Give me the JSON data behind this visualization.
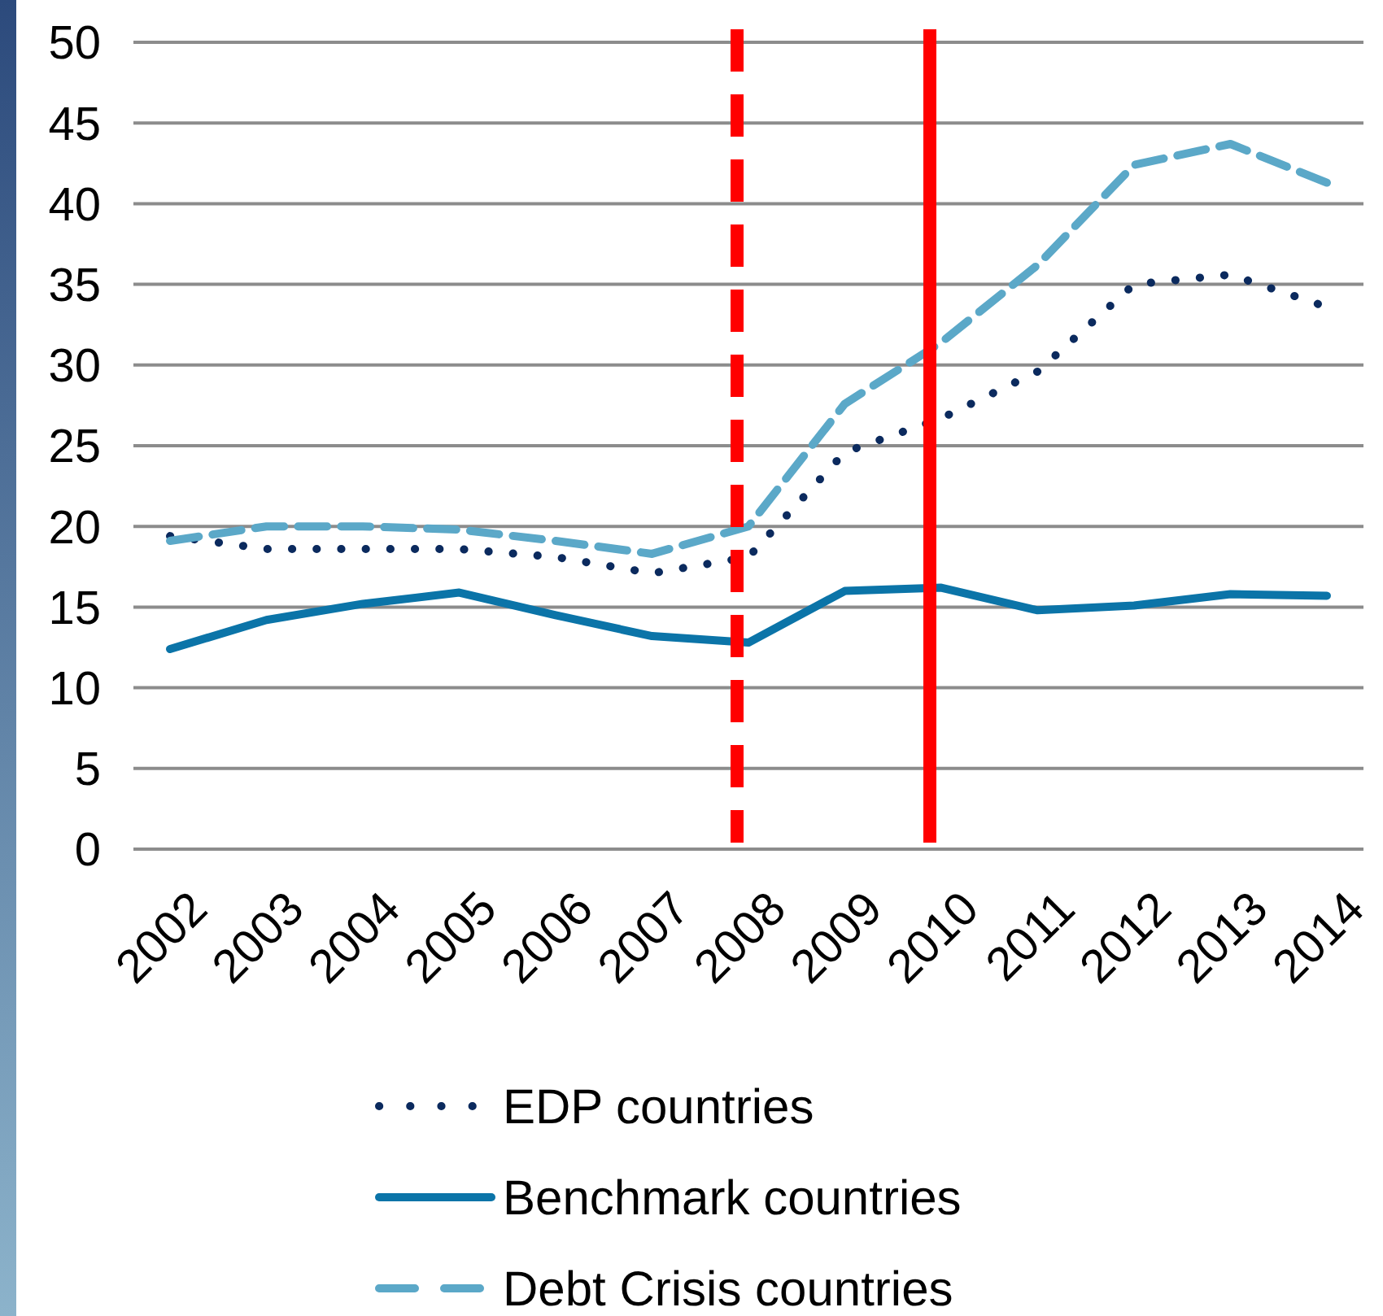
{
  "chart_data": {
    "type": "line",
    "categories": [
      "2002",
      "2003",
      "2004",
      "2005",
      "2006",
      "2007",
      "2008",
      "2009",
      "2010",
      "2011",
      "2012",
      "2013",
      "2014"
    ],
    "series": [
      {
        "name": "EDP countries",
        "color": "#0b2a5e",
        "line_style": "dotted",
        "values": [
          19.4,
          18.6,
          18.6,
          18.6,
          18.1,
          17.1,
          18.1,
          24.6,
          26.7,
          29.6,
          35.0,
          35.6,
          33.6
        ]
      },
      {
        "name": "Benchmark countries",
        "color": "#0b74a8",
        "line_style": "solid",
        "values": [
          12.4,
          14.2,
          15.2,
          15.9,
          14.5,
          13.2,
          12.8,
          16.0,
          16.2,
          14.8,
          15.1,
          15.8,
          15.7
        ]
      },
      {
        "name": "Debt Crisis countries",
        "color": "#5ba8c8",
        "line_style": "dashed",
        "values": [
          19.1,
          20.0,
          20.0,
          19.8,
          19.1,
          18.3,
          20.0,
          27.6,
          31.4,
          36.2,
          42.4,
          43.7,
          41.3
        ]
      }
    ],
    "ylim": [
      0,
      50
    ],
    "yticks": [
      0,
      5,
      10,
      15,
      20,
      25,
      30,
      35,
      40,
      45,
      50
    ],
    "grid": "y",
    "legend": "bottom",
    "ref_lines": [
      {
        "axis": "x",
        "value": "2008",
        "color": "#ff0000",
        "line_style": "dashed"
      },
      {
        "axis": "x",
        "value": "2010",
        "color": "#ff0000",
        "line_style": "solid"
      }
    ]
  }
}
